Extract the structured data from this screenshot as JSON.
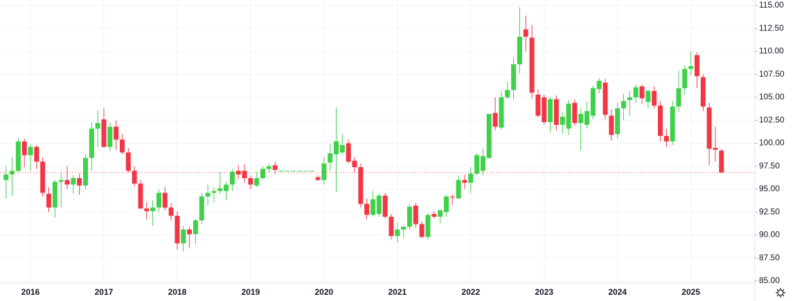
{
  "chart_data": {
    "type": "candlestick",
    "categories": [
      null,
      null,
      null,
      null,
      "2016",
      null,
      null,
      null,
      null,
      null,
      null,
      null,
      null,
      null,
      null,
      null,
      "2017",
      null,
      null,
      null,
      null,
      null,
      null,
      null,
      null,
      null,
      null,
      null,
      "2018",
      null,
      null,
      null,
      null,
      null,
      null,
      null,
      null,
      null,
      null,
      null,
      "2019",
      null,
      null,
      null,
      null,
      null,
      null,
      null,
      null,
      null,
      null,
      null,
      "2020",
      null,
      null,
      null,
      null,
      null,
      null,
      null,
      null,
      null,
      null,
      null,
      "2021",
      null,
      null,
      null,
      null,
      null,
      null,
      null,
      null,
      null,
      null,
      null,
      "2022",
      null,
      null,
      null,
      null,
      null,
      null,
      null,
      null,
      null,
      null,
      null,
      "2023",
      null,
      null,
      null,
      null,
      null,
      null,
      null,
      null,
      null,
      null,
      null,
      "2024",
      null,
      null,
      null,
      null,
      null,
      null,
      null,
      null,
      null,
      null,
      null,
      "2025",
      null,
      null,
      null,
      null,
      null
    ],
    "open": [
      96.0,
      96.6,
      97.0,
      100.2,
      98.7,
      99.6,
      98.0,
      94.5,
      93.0,
      95.8,
      96.0,
      95.5,
      96.2,
      95.4,
      98.4,
      101.6,
      102.6,
      99.6,
      101.8,
      100.4,
      99.0,
      97.0,
      95.6,
      92.9,
      92.6,
      93.0,
      94.6,
      93.0,
      92.1,
      89.1,
      90.6,
      90.1,
      91.6,
      94.2,
      94.6,
      94.8,
      94.8,
      95.5,
      97.0,
      97.0,
      96.2,
      95.4,
      96.2,
      97.2,
      97.6,
      97.0,
      97.0,
      97.0,
      97.0,
      97.0,
      97.0,
      96.3,
      96.0,
      97.9,
      98.8,
      99.0,
      100.0,
      98.1,
      97.4,
      93.4,
      92.2,
      92.3,
      94.3,
      92.0,
      89.9,
      90.6,
      90.9,
      93.2,
      91.2,
      89.8,
      92.3,
      92.0,
      92.5,
      94.2,
      94.0,
      96.0,
      95.7,
      96.7,
      97.0,
      98.4,
      103.3,
      101.7,
      105.0,
      105.8,
      108.6,
      112.4,
      111.5,
      105.3,
      105.0,
      102.3,
      104.8,
      102.0,
      101.6,
      104.4,
      102.2,
      102.0,
      103.0,
      105.9,
      106.6,
      103.0,
      101.0,
      103.8,
      104.7,
      105.0,
      106.2,
      104.5,
      105.7,
      104.1,
      100.8,
      100.2,
      104.0,
      106.0,
      108.1,
      109.6,
      107.2,
      103.9,
      99.5,
      99.2
    ],
    "high": [
      97.5,
      98.5,
      100.6,
      100.5,
      99.9,
      99.8,
      98.5,
      95.2,
      96.0,
      96.8,
      97.5,
      96.5,
      96.7,
      98.8,
      102.3,
      103.6,
      103.8,
      102.3,
      102.5,
      101.0,
      99.5,
      97.5,
      96.0,
      93.6,
      93.8,
      95.0,
      95.2,
      93.5,
      92.6,
      91.0,
      90.9,
      91.8,
      94.6,
      95.5,
      95.2,
      96.9,
      95.8,
      97.2,
      97.6,
      97.7,
      96.5,
      96.9,
      97.5,
      97.8,
      98.0,
      97.0,
      97.0,
      97.0,
      97.0,
      97.0,
      97.0,
      96.5,
      98.5,
      99.9,
      103.9,
      101.0,
      100.4,
      98.5,
      97.8,
      94.0,
      94.8,
      94.5,
      94.6,
      92.3,
      91.4,
      91.0,
      93.4,
      93.5,
      91.5,
      92.4,
      92.6,
      92.8,
      94.4,
      94.4,
      96.5,
      96.6,
      97.4,
      98.9,
      99.4,
      103.2,
      105.0,
      105.7,
      106.7,
      109.3,
      114.8,
      113.9,
      112.9,
      105.9,
      105.3,
      105.0,
      105.2,
      103.4,
      104.7,
      104.8,
      103.8,
      104.5,
      106.3,
      107.1,
      107.0,
      103.7,
      104.4,
      105.4,
      105.7,
      106.4,
      106.4,
      105.9,
      106.2,
      104.6,
      101.6,
      104.6,
      107.9,
      108.5,
      110.0,
      109.9,
      107.5,
      104.4,
      101.8,
      99.4
    ],
    "low": [
      94.0,
      94.3,
      96.8,
      97.4,
      97.0,
      97.2,
      94.2,
      92.5,
      91.9,
      93.0,
      95.0,
      94.5,
      94.4,
      95.0,
      97.0,
      99.6,
      99.5,
      99.2,
      99.3,
      98.8,
      96.8,
      95.3,
      92.8,
      91.7,
      91.0,
      92.5,
      92.7,
      91.6,
      88.4,
      88.2,
      88.6,
      89.0,
      91.2,
      93.2,
      93.6,
      94.5,
      93.8,
      94.8,
      96.1,
      95.7,
      95.0,
      95.2,
      96.0,
      96.8,
      96.7,
      97.0,
      97.0,
      97.0,
      97.0,
      97.0,
      97.0,
      95.9,
      95.5,
      97.0,
      94.7,
      98.8,
      97.8,
      96.8,
      93.0,
      91.7,
      92.0,
      92.0,
      91.8,
      89.5,
      89.2,
      89.7,
      90.6,
      90.8,
      89.6,
      89.5,
      91.8,
      91.3,
      92.0,
      93.3,
      93.9,
      95.0,
      94.6,
      96.5,
      96.5,
      98.3,
      101.4,
      101.5,
      104.8,
      104.8,
      107.6,
      110.0,
      104.9,
      102.8,
      102.0,
      101.2,
      101.4,
      101.0,
      100.9,
      101.9,
      99.2,
      101.6,
      102.6,
      105.4,
      102.6,
      100.3,
      100.5,
      102.5,
      103.0,
      104.4,
      104.3,
      103.8,
      103.8,
      100.2,
      99.6,
      99.8,
      103.4,
      105.3,
      107.4,
      106.0,
      103.5,
      97.6,
      98.0,
      96.8
    ],
    "close": [
      96.6,
      97.0,
      100.2,
      98.7,
      99.6,
      98.0,
      94.6,
      93.0,
      95.8,
      96.0,
      95.5,
      96.2,
      95.4,
      98.4,
      101.6,
      102.2,
      99.6,
      101.8,
      100.4,
      99.0,
      97.0,
      95.6,
      92.9,
      92.6,
      93.0,
      94.6,
      93.0,
      92.1,
      89.1,
      90.6,
      90.1,
      91.6,
      94.2,
      94.6,
      94.8,
      95.1,
      95.5,
      96.9,
      96.6,
      96.2,
      95.5,
      96.2,
      97.2,
      97.5,
      97.1,
      97.0,
      97.0,
      97.0,
      97.0,
      97.0,
      97.0,
      96.0,
      97.8,
      98.9,
      100.2,
      99.8,
      98.0,
      97.4,
      93.4,
      92.2,
      93.9,
      94.3,
      92.0,
      89.9,
      90.6,
      90.9,
      93.1,
      91.2,
      89.8,
      92.2,
      92.0,
      92.7,
      94.2,
      94.1,
      96.0,
      95.7,
      96.7,
      98.7,
      98.6,
      103.2,
      101.8,
      105.0,
      105.8,
      108.6,
      111.6,
      111.6,
      105.5,
      103.0,
      102.3,
      104.8,
      102.0,
      102.9,
      104.3,
      102.2,
      103.2,
      103.5,
      106.0,
      106.8,
      103.1,
      100.9,
      103.8,
      104.6,
      105.0,
      106.1,
      104.9,
      105.7,
      104.1,
      100.8,
      100.2,
      104.0,
      106.0,
      108.1,
      108.4,
      107.3,
      104.0,
      99.4,
      99.3,
      96.8
    ],
    "up_color": "#3fd14a",
    "down_color": "#f23645",
    "ylim": [
      85,
      115
    ],
    "yticks": [
      {
        "value": 85,
        "label": "85.00"
      },
      {
        "value": 87.5,
        "label": "87.50"
      },
      {
        "value": 90,
        "label": "90.00"
      },
      {
        "value": 92.5,
        "label": "92.50"
      },
      {
        "value": 95,
        "label": "95.00"
      },
      {
        "value": 97.5,
        "label": "97.50"
      },
      {
        "value": 100,
        "label": "100.00"
      },
      {
        "value": 102.5,
        "label": "102.50"
      },
      {
        "value": 105,
        "label": "105.00"
      },
      {
        "value": 107.5,
        "label": "107.50"
      },
      {
        "value": 110,
        "label": "110.00"
      },
      {
        "value": 112.5,
        "label": "112.50"
      },
      {
        "value": 115,
        "label": "115.00"
      }
    ],
    "grid": true
  }
}
